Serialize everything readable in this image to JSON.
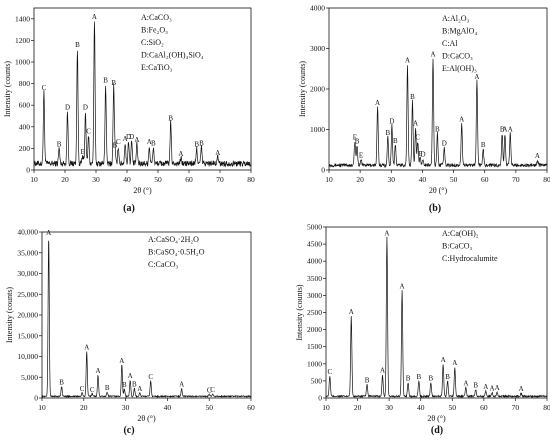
{
  "chart_data": [
    {
      "type": "line",
      "panel_label": "(a)",
      "xlabel": "2θ (°)",
      "ylabel": "Intensity (counts)",
      "xlim": [
        10,
        80
      ],
      "ylim": [
        0,
        1500
      ],
      "xticks": [
        10,
        20,
        30,
        40,
        50,
        60,
        70,
        80
      ],
      "yticks": [
        0,
        200,
        400,
        600,
        800,
        1000,
        1200,
        1400
      ],
      "ytick_labels": [
        "0",
        "200",
        "400",
        "600",
        "800",
        "1000",
        "1200",
        "1400"
      ],
      "legend": [
        "A:CaCO3",
        "B:Fe2O3",
        "C:SiO2",
        "D:CaAl2(OH)4SiO4",
        "E:CaTiO3"
      ],
      "legend_placement": "top-right",
      "baseline": 60,
      "noise": 45,
      "peaks": [
        {
          "x": 13.2,
          "y": 720,
          "label": "C"
        },
        {
          "x": 18.1,
          "y": 200,
          "label": "B"
        },
        {
          "x": 20.8,
          "y": 540,
          "label": "D"
        },
        {
          "x": 24.0,
          "y": 1120,
          "label": "B"
        },
        {
          "x": 26.6,
          "y": 540,
          "label": "D"
        },
        {
          "x": 27.6,
          "y": 320,
          "label": "C"
        },
        {
          "x": 25.7,
          "y": 130,
          "label": "E"
        },
        {
          "x": 29.5,
          "y": 1380,
          "label": "A"
        },
        {
          "x": 33.1,
          "y": 790,
          "label": "B"
        },
        {
          "x": 35.7,
          "y": 770,
          "label": "B"
        },
        {
          "x": 36.1,
          "y": 190,
          "label": "B"
        },
        {
          "x": 37.2,
          "y": 220,
          "label": "C"
        },
        {
          "x": 39.4,
          "y": 250,
          "label": "A"
        },
        {
          "x": 40.5,
          "y": 270,
          "label": "D"
        },
        {
          "x": 41.5,
          "y": 270,
          "label": "D"
        },
        {
          "x": 43.2,
          "y": 240,
          "label": "A"
        },
        {
          "x": 47.2,
          "y": 220,
          "label": "A"
        },
        {
          "x": 48.5,
          "y": 210,
          "label": "B"
        },
        {
          "x": 54.1,
          "y": 440,
          "label": "B"
        },
        {
          "x": 57.4,
          "y": 110,
          "label": "A"
        },
        {
          "x": 62.5,
          "y": 200,
          "label": "B"
        },
        {
          "x": 64.0,
          "y": 210,
          "label": "B"
        },
        {
          "x": 69.3,
          "y": 120,
          "label": "A"
        }
      ]
    },
    {
      "type": "line",
      "panel_label": "(b)",
      "xlabel": "2θ (°)",
      "ylabel": "Intensity (counts)",
      "xlim": [
        10,
        80
      ],
      "ylim": [
        0,
        4000
      ],
      "xticks": [
        10,
        20,
        30,
        40,
        50,
        60,
        70,
        80
      ],
      "yticks": [
        0,
        1000,
        2000,
        3000,
        4000
      ],
      "ytick_labels": [
        "0",
        "1000",
        "2000",
        "3000",
        "4000"
      ],
      "legend": [
        "A:Al2O3",
        "B:MgAlO4",
        "C:Al",
        "D:CaCO3",
        "E:Al(OH)3"
      ],
      "legend_placement": "top-right",
      "baseline": 120,
      "noise": 70,
      "peaks": [
        {
          "x": 18.3,
          "y": 700,
          "label": "E"
        },
        {
          "x": 19.0,
          "y": 600,
          "label": "B"
        },
        {
          "x": 20.3,
          "y": 260,
          "label": "E"
        },
        {
          "x": 25.6,
          "y": 1550,
          "label": "A"
        },
        {
          "x": 28.9,
          "y": 820,
          "label": "B"
        },
        {
          "x": 30.2,
          "y": 1100,
          "label": "D"
        },
        {
          "x": 31.3,
          "y": 620,
          "label": "B"
        },
        {
          "x": 35.2,
          "y": 2600,
          "label": "A"
        },
        {
          "x": 36.8,
          "y": 1700,
          "label": "B"
        },
        {
          "x": 37.8,
          "y": 1050,
          "label": "A"
        },
        {
          "x": 38.5,
          "y": 700,
          "label": "C"
        },
        {
          "x": 39.3,
          "y": 300,
          "label": "E"
        },
        {
          "x": 40.2,
          "y": 280,
          "label": "D"
        },
        {
          "x": 43.4,
          "y": 2750,
          "label": "A"
        },
        {
          "x": 44.8,
          "y": 900,
          "label": "B"
        },
        {
          "x": 47.0,
          "y": 550,
          "label": "D"
        },
        {
          "x": 52.6,
          "y": 1150,
          "label": "A"
        },
        {
          "x": 57.5,
          "y": 2200,
          "label": "A"
        },
        {
          "x": 59.5,
          "y": 520,
          "label": "B"
        },
        {
          "x": 65.6,
          "y": 900,
          "label": "B"
        },
        {
          "x": 66.5,
          "y": 900,
          "label": "A"
        },
        {
          "x": 68.2,
          "y": 900,
          "label": "A"
        },
        {
          "x": 76.9,
          "y": 250,
          "label": "A"
        }
      ]
    },
    {
      "type": "line",
      "panel_label": "(c)",
      "xlabel": "2θ (°)",
      "ylabel": "Intensity (counts)",
      "xlim": [
        10,
        60
      ],
      "ylim": [
        0,
        40000
      ],
      "xticks": [
        10,
        20,
        30,
        40,
        50,
        60
      ],
      "yticks": [
        0,
        5000,
        10000,
        15000,
        20000,
        25000,
        30000,
        35000,
        40000
      ],
      "ytick_labels": [
        "0",
        "5,000",
        "10,000",
        "15,000",
        "20,000",
        "25,000",
        "30,000",
        "35,000",
        "40,000"
      ],
      "legend": [
        "A:CaSO4·2H2O",
        "B:CaSO4·0.5H2O",
        "C:CaCO3"
      ],
      "legend_placement": "top-right",
      "baseline": 400,
      "noise": 250,
      "peaks": [
        {
          "x": 11.6,
          "y": 38800,
          "label": "A"
        },
        {
          "x": 14.7,
          "y": 2800,
          "label": "B"
        },
        {
          "x": 20.7,
          "y": 11200,
          "label": "A"
        },
        {
          "x": 19.6,
          "y": 1200,
          "label": "C"
        },
        {
          "x": 22.0,
          "y": 1000,
          "label": "C"
        },
        {
          "x": 23.4,
          "y": 5500,
          "label": "A"
        },
        {
          "x": 25.6,
          "y": 1400,
          "label": "B"
        },
        {
          "x": 29.1,
          "y": 8000,
          "label": "A"
        },
        {
          "x": 29.7,
          "y": 2200,
          "label": "B"
        },
        {
          "x": 31.1,
          "y": 4300,
          "label": "A"
        },
        {
          "x": 32.1,
          "y": 2300,
          "label": "B"
        },
        {
          "x": 33.4,
          "y": 1200,
          "label": "A"
        },
        {
          "x": 36.0,
          "y": 4100,
          "label": "C"
        },
        {
          "x": 43.4,
          "y": 2300,
          "label": "A"
        },
        {
          "x": 50.0,
          "y": 900,
          "label": "C"
        },
        {
          "x": 50.8,
          "y": 1000,
          "label": "C"
        }
      ]
    },
    {
      "type": "line",
      "panel_label": "(d)",
      "xlabel": "2θ (°)",
      "ylabel": "Intensity (counts)",
      "xlim": [
        10,
        80
      ],
      "ylim": [
        0,
        5000
      ],
      "xticks": [
        10,
        20,
        30,
        40,
        50,
        60,
        70,
        80
      ],
      "yticks": [
        0,
        500,
        1000,
        1500,
        2000,
        2500,
        3000,
        3500,
        4000,
        4500,
        5000
      ],
      "ytick_labels": [
        "0",
        "500",
        "1000",
        "1500",
        "2000",
        "2500",
        "3000",
        "3500",
        "4000",
        "4500",
        "5000"
      ],
      "legend": [
        "A:Ca(OH)2",
        "B:CaCO3",
        "C:Hydrocalumite"
      ],
      "legend_placement": "top-right",
      "baseline": 50,
      "noise": 40,
      "peaks": [
        {
          "x": 11.2,
          "y": 650,
          "label": "C"
        },
        {
          "x": 18.0,
          "y": 2400,
          "label": "A"
        },
        {
          "x": 23.0,
          "y": 400,
          "label": "B"
        },
        {
          "x": 27.9,
          "y": 680,
          "label": "A"
        },
        {
          "x": 29.3,
          "y": 4700,
          "label": "A"
        },
        {
          "x": 34.1,
          "y": 3150,
          "label": "A"
        },
        {
          "x": 36.0,
          "y": 450,
          "label": "B"
        },
        {
          "x": 39.4,
          "y": 500,
          "label": "B"
        },
        {
          "x": 43.2,
          "y": 450,
          "label": "B"
        },
        {
          "x": 47.1,
          "y": 1000,
          "label": "A"
        },
        {
          "x": 48.5,
          "y": 500,
          "label": "B"
        },
        {
          "x": 50.8,
          "y": 900,
          "label": "A"
        },
        {
          "x": 54.3,
          "y": 300,
          "label": "A"
        },
        {
          "x": 57.4,
          "y": 250,
          "label": "B"
        },
        {
          "x": 60.6,
          "y": 200,
          "label": "A"
        },
        {
          "x": 62.6,
          "y": 160,
          "label": "A"
        },
        {
          "x": 64.2,
          "y": 180,
          "label": "A"
        },
        {
          "x": 71.8,
          "y": 140,
          "label": "A"
        }
      ]
    }
  ]
}
